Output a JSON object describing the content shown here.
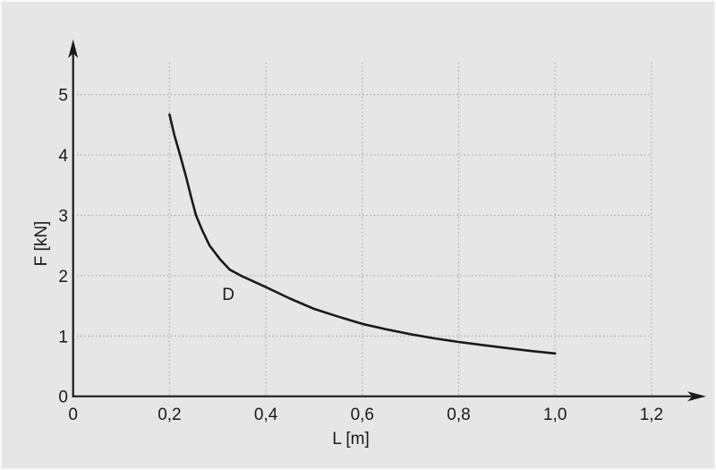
{
  "figure": {
    "background": "#e6e6e6",
    "frame_color": "#f8f8f8",
    "axis_color": "#1a1a1a",
    "grid_color": "#a0a0a0",
    "curve_color": "#1a1a1a"
  },
  "chart_data": {
    "type": "line",
    "title": "",
    "xlabel": "L [m]",
    "ylabel": "F [kN]",
    "xlim": [
      0,
      1.3
    ],
    "ylim": [
      0,
      5.6
    ],
    "grid": "dotted",
    "legend_position": "none",
    "x_ticks": [
      {
        "value": 0,
        "label": "0"
      },
      {
        "value": 0.2,
        "label": "0,2"
      },
      {
        "value": 0.4,
        "label": "0,4"
      },
      {
        "value": 0.6,
        "label": "0,6"
      },
      {
        "value": 0.8,
        "label": "0,8"
      },
      {
        "value": 1.0,
        "label": "1,0"
      },
      {
        "value": 1.2,
        "label": "1,2"
      }
    ],
    "y_ticks": [
      {
        "value": 0,
        "label": "0"
      },
      {
        "value": 1,
        "label": "1"
      },
      {
        "value": 2,
        "label": "2"
      },
      {
        "value": 3,
        "label": "3"
      },
      {
        "value": 4,
        "label": "4"
      },
      {
        "value": 5,
        "label": "5"
      }
    ],
    "series": [
      {
        "name": "D",
        "label": "D",
        "label_at": {
          "L": 0.322,
          "F": 1.7
        },
        "points": [
          [
            0.2,
            4.67
          ],
          [
            0.21,
            4.33
          ],
          [
            0.222,
            4.0
          ],
          [
            0.235,
            3.62
          ],
          [
            0.245,
            3.3
          ],
          [
            0.255,
            3.0
          ],
          [
            0.268,
            2.75
          ],
          [
            0.283,
            2.5
          ],
          [
            0.306,
            2.26
          ],
          [
            0.325,
            2.1
          ],
          [
            0.348,
            2.0
          ],
          [
            0.37,
            1.92
          ],
          [
            0.4,
            1.81
          ],
          [
            0.45,
            1.62
          ],
          [
            0.5,
            1.45
          ],
          [
            0.55,
            1.32
          ],
          [
            0.6,
            1.2
          ],
          [
            0.65,
            1.11
          ],
          [
            0.7,
            1.03
          ],
          [
            0.75,
            0.96
          ],
          [
            0.8,
            0.9
          ],
          [
            0.85,
            0.85
          ],
          [
            0.9,
            0.8
          ],
          [
            0.95,
            0.75
          ],
          [
            1.0,
            0.71
          ]
        ]
      }
    ]
  }
}
